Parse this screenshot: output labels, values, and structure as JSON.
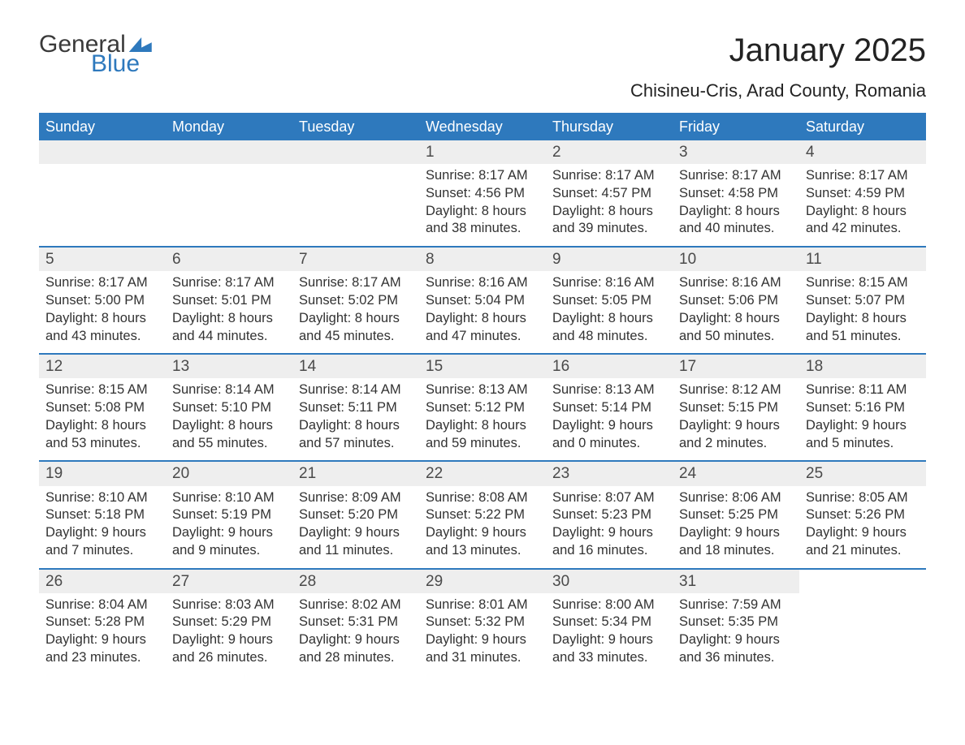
{
  "logo": {
    "general": "General",
    "blue": "Blue"
  },
  "title": "January 2025",
  "location": "Chisineu-Cris, Arad County, Romania",
  "colors": {
    "accent": "#2e79bd",
    "header_bg": "#2e79bd",
    "header_text": "#ffffff",
    "daynum_bg": "#eeeeee",
    "body_text": "#323232",
    "border": "#2e79bd",
    "background": "#ffffff"
  },
  "layout": {
    "columns": 7,
    "header_fontsize": 18,
    "title_fontsize": 40,
    "location_fontsize": 22,
    "body_fontsize": 16.5
  },
  "day_headers": [
    "Sunday",
    "Monday",
    "Tuesday",
    "Wednesday",
    "Thursday",
    "Friday",
    "Saturday"
  ],
  "weeks": [
    [
      {
        "empty": true
      },
      {
        "empty": true
      },
      {
        "empty": true
      },
      {
        "day": "1",
        "sunrise": "Sunrise: 8:17 AM",
        "sunset": "Sunset: 4:56 PM",
        "daylight": "Daylight: 8 hours and 38 minutes."
      },
      {
        "day": "2",
        "sunrise": "Sunrise: 8:17 AM",
        "sunset": "Sunset: 4:57 PM",
        "daylight": "Daylight: 8 hours and 39 minutes."
      },
      {
        "day": "3",
        "sunrise": "Sunrise: 8:17 AM",
        "sunset": "Sunset: 4:58 PM",
        "daylight": "Daylight: 8 hours and 40 minutes."
      },
      {
        "day": "4",
        "sunrise": "Sunrise: 8:17 AM",
        "sunset": "Sunset: 4:59 PM",
        "daylight": "Daylight: 8 hours and 42 minutes."
      }
    ],
    [
      {
        "day": "5",
        "sunrise": "Sunrise: 8:17 AM",
        "sunset": "Sunset: 5:00 PM",
        "daylight": "Daylight: 8 hours and 43 minutes."
      },
      {
        "day": "6",
        "sunrise": "Sunrise: 8:17 AM",
        "sunset": "Sunset: 5:01 PM",
        "daylight": "Daylight: 8 hours and 44 minutes."
      },
      {
        "day": "7",
        "sunrise": "Sunrise: 8:17 AM",
        "sunset": "Sunset: 5:02 PM",
        "daylight": "Daylight: 8 hours and 45 minutes."
      },
      {
        "day": "8",
        "sunrise": "Sunrise: 8:16 AM",
        "sunset": "Sunset: 5:04 PM",
        "daylight": "Daylight: 8 hours and 47 minutes."
      },
      {
        "day": "9",
        "sunrise": "Sunrise: 8:16 AM",
        "sunset": "Sunset: 5:05 PM",
        "daylight": "Daylight: 8 hours and 48 minutes."
      },
      {
        "day": "10",
        "sunrise": "Sunrise: 8:16 AM",
        "sunset": "Sunset: 5:06 PM",
        "daylight": "Daylight: 8 hours and 50 minutes."
      },
      {
        "day": "11",
        "sunrise": "Sunrise: 8:15 AM",
        "sunset": "Sunset: 5:07 PM",
        "daylight": "Daylight: 8 hours and 51 minutes."
      }
    ],
    [
      {
        "day": "12",
        "sunrise": "Sunrise: 8:15 AM",
        "sunset": "Sunset: 5:08 PM",
        "daylight": "Daylight: 8 hours and 53 minutes."
      },
      {
        "day": "13",
        "sunrise": "Sunrise: 8:14 AM",
        "sunset": "Sunset: 5:10 PM",
        "daylight": "Daylight: 8 hours and 55 minutes."
      },
      {
        "day": "14",
        "sunrise": "Sunrise: 8:14 AM",
        "sunset": "Sunset: 5:11 PM",
        "daylight": "Daylight: 8 hours and 57 minutes."
      },
      {
        "day": "15",
        "sunrise": "Sunrise: 8:13 AM",
        "sunset": "Sunset: 5:12 PM",
        "daylight": "Daylight: 8 hours and 59 minutes."
      },
      {
        "day": "16",
        "sunrise": "Sunrise: 8:13 AM",
        "sunset": "Sunset: 5:14 PM",
        "daylight": "Daylight: 9 hours and 0 minutes."
      },
      {
        "day": "17",
        "sunrise": "Sunrise: 8:12 AM",
        "sunset": "Sunset: 5:15 PM",
        "daylight": "Daylight: 9 hours and 2 minutes."
      },
      {
        "day": "18",
        "sunrise": "Sunrise: 8:11 AM",
        "sunset": "Sunset: 5:16 PM",
        "daylight": "Daylight: 9 hours and 5 minutes."
      }
    ],
    [
      {
        "day": "19",
        "sunrise": "Sunrise: 8:10 AM",
        "sunset": "Sunset: 5:18 PM",
        "daylight": "Daylight: 9 hours and 7 minutes."
      },
      {
        "day": "20",
        "sunrise": "Sunrise: 8:10 AM",
        "sunset": "Sunset: 5:19 PM",
        "daylight": "Daylight: 9 hours and 9 minutes."
      },
      {
        "day": "21",
        "sunrise": "Sunrise: 8:09 AM",
        "sunset": "Sunset: 5:20 PM",
        "daylight": "Daylight: 9 hours and 11 minutes."
      },
      {
        "day": "22",
        "sunrise": "Sunrise: 8:08 AM",
        "sunset": "Sunset: 5:22 PM",
        "daylight": "Daylight: 9 hours and 13 minutes."
      },
      {
        "day": "23",
        "sunrise": "Sunrise: 8:07 AM",
        "sunset": "Sunset: 5:23 PM",
        "daylight": "Daylight: 9 hours and 16 minutes."
      },
      {
        "day": "24",
        "sunrise": "Sunrise: 8:06 AM",
        "sunset": "Sunset: 5:25 PM",
        "daylight": "Daylight: 9 hours and 18 minutes."
      },
      {
        "day": "25",
        "sunrise": "Sunrise: 8:05 AM",
        "sunset": "Sunset: 5:26 PM",
        "daylight": "Daylight: 9 hours and 21 minutes."
      }
    ],
    [
      {
        "day": "26",
        "sunrise": "Sunrise: 8:04 AM",
        "sunset": "Sunset: 5:28 PM",
        "daylight": "Daylight: 9 hours and 23 minutes."
      },
      {
        "day": "27",
        "sunrise": "Sunrise: 8:03 AM",
        "sunset": "Sunset: 5:29 PM",
        "daylight": "Daylight: 9 hours and 26 minutes."
      },
      {
        "day": "28",
        "sunrise": "Sunrise: 8:02 AM",
        "sunset": "Sunset: 5:31 PM",
        "daylight": "Daylight: 9 hours and 28 minutes."
      },
      {
        "day": "29",
        "sunrise": "Sunrise: 8:01 AM",
        "sunset": "Sunset: 5:32 PM",
        "daylight": "Daylight: 9 hours and 31 minutes."
      },
      {
        "day": "30",
        "sunrise": "Sunrise: 8:00 AM",
        "sunset": "Sunset: 5:34 PM",
        "daylight": "Daylight: 9 hours and 33 minutes."
      },
      {
        "day": "31",
        "sunrise": "Sunrise: 7:59 AM",
        "sunset": "Sunset: 5:35 PM",
        "daylight": "Daylight: 9 hours and 36 minutes."
      },
      {
        "empty": true,
        "no_header": true
      }
    ]
  ]
}
